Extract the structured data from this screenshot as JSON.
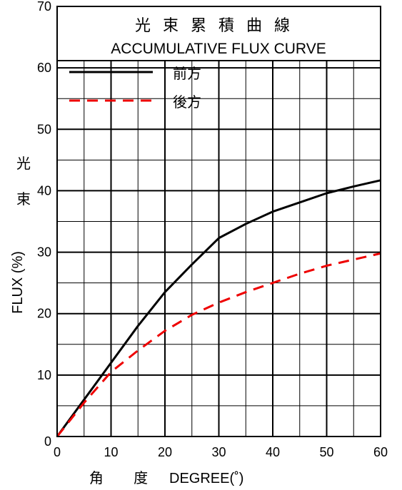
{
  "chart_data": {
    "type": "line",
    "title_cn": "光束累積曲線",
    "title": "ACCUMULATIVE FLUX CURVE",
    "xlabel_cn": "角 度",
    "xlabel": "DEGREE(˚)",
    "ylabel_cn_1": "光",
    "ylabel_cn_2": "束",
    "ylabel": "FLUX (%)",
    "xlim": [
      0,
      60
    ],
    "ylim": [
      0,
      70
    ],
    "x_ticks": [
      0,
      10,
      20,
      30,
      40,
      50,
      60
    ],
    "y_ticks": [
      0,
      10,
      20,
      30,
      40,
      50,
      60,
      70
    ],
    "grid": true,
    "legend_position": "top-left",
    "series": [
      {
        "name": "前方",
        "color": "#000000",
        "style": "solid",
        "x": [
          0,
          5,
          10,
          15,
          20,
          25,
          30,
          35,
          40,
          45,
          50,
          55,
          60
        ],
        "y": [
          0,
          6,
          12,
          18,
          23.5,
          28,
          32.3,
          34.6,
          36.6,
          38.1,
          39.6,
          40.7,
          41.7
        ]
      },
      {
        "name": "後方",
        "color": "#ee0000",
        "style": "dashed",
        "x": [
          0,
          5,
          10,
          15,
          20,
          25,
          30,
          35,
          40,
          45,
          50,
          55,
          60
        ],
        "y": [
          0,
          5.5,
          10.5,
          14,
          17.2,
          19.8,
          21.8,
          23.5,
          25,
          26.5,
          27.8,
          28.8,
          29.8
        ]
      }
    ]
  }
}
